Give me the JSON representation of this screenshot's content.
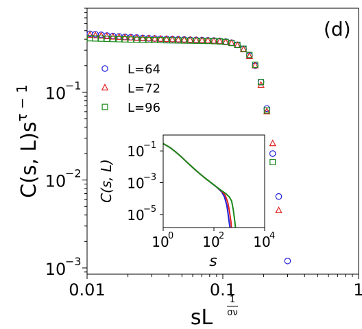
{
  "chart_data": [
    {
      "type": "scatter",
      "panel_label": "(d)",
      "x_scale": "log",
      "y_scale": "log",
      "xlim": [
        0.01,
        1
      ],
      "ylim": [
        0.00085,
        0.9
      ],
      "x_ticks": [
        0.01,
        0.1,
        1
      ],
      "x_tick_labels": [
        "0.01",
        "0.1",
        "1"
      ],
      "y_ticks": [
        0.001,
        0.01,
        0.1
      ],
      "y_tick_labels": [
        "10",
        "10",
        "10"
      ],
      "y_tick_exponents": [
        "−3",
        "−2",
        "−1"
      ],
      "xlabel_base": "sL",
      "xlabel_exp_num": "1",
      "xlabel_exp_den": "σν",
      "ylabel_main": "C(s, L)s",
      "ylabel_exp": "τ − 1",
      "legend_position": "center-left",
      "series": [
        {
          "name": "L=64",
          "color": "#1f1fd8",
          "marker": "circle",
          "x": [
            0.0105,
            0.0115,
            0.0127,
            0.014,
            0.0155,
            0.0172,
            0.019,
            0.021,
            0.0232,
            0.0257,
            0.0285,
            0.0315,
            0.0348,
            0.0385,
            0.0425,
            0.047,
            0.052,
            0.0575,
            0.0636,
            0.0703,
            0.0777,
            0.0859,
            0.095,
            0.105,
            0.116,
            0.128,
            0.142,
            0.157,
            0.173,
            0.191,
            0.211,
            0.233,
            0.258,
            0.3
          ],
          "y": [
            0.46,
            0.455,
            0.448,
            0.44,
            0.435,
            0.43,
            0.425,
            0.421,
            0.417,
            0.413,
            0.41,
            0.407,
            0.404,
            0.402,
            0.4,
            0.398,
            0.396,
            0.394,
            0.392,
            0.39,
            0.388,
            0.386,
            0.382,
            0.375,
            0.365,
            0.345,
            0.31,
            0.26,
            0.2,
            0.13,
            0.065,
            0.02,
            0.0065,
            0.0012
          ]
        },
        {
          "name": "L=72",
          "color": "#e02020",
          "marker": "triangle",
          "x": [
            0.0105,
            0.0115,
            0.0127,
            0.014,
            0.0155,
            0.0172,
            0.019,
            0.021,
            0.0232,
            0.0257,
            0.0285,
            0.0315,
            0.0348,
            0.0385,
            0.0425,
            0.047,
            0.052,
            0.0575,
            0.0636,
            0.0703,
            0.0777,
            0.0859,
            0.095,
            0.105,
            0.116,
            0.128,
            0.142,
            0.157,
            0.173,
            0.191,
            0.211,
            0.233,
            0.258
          ],
          "y": [
            0.445,
            0.44,
            0.435,
            0.43,
            0.425,
            0.421,
            0.417,
            0.414,
            0.411,
            0.408,
            0.406,
            0.403,
            0.401,
            0.399,
            0.397,
            0.395,
            0.393,
            0.391,
            0.389,
            0.387,
            0.384,
            0.381,
            0.377,
            0.37,
            0.36,
            0.34,
            0.305,
            0.255,
            0.2,
            0.12,
            0.06,
            0.026,
            0.0045
          ]
        },
        {
          "name": "L=96",
          "color": "#1a8a1a",
          "marker": "square",
          "x": [
            0.0105,
            0.0115,
            0.0127,
            0.014,
            0.0155,
            0.0172,
            0.019,
            0.021,
            0.0232,
            0.0257,
            0.0285,
            0.0315,
            0.0348,
            0.0385,
            0.0425,
            0.047,
            0.052,
            0.0575,
            0.0636,
            0.0703,
            0.0777,
            0.0859,
            0.095,
            0.105,
            0.116,
            0.128,
            0.142,
            0.157,
            0.173,
            0.191,
            0.211,
            0.233
          ],
          "y": [
            0.41,
            0.408,
            0.406,
            0.404,
            0.402,
            0.4,
            0.398,
            0.396,
            0.394,
            0.393,
            0.392,
            0.391,
            0.39,
            0.389,
            0.388,
            0.387,
            0.386,
            0.385,
            0.384,
            0.383,
            0.382,
            0.38,
            0.377,
            0.372,
            0.362,
            0.345,
            0.312,
            0.265,
            0.205,
            0.13,
            0.062,
            0.016
          ]
        }
      ]
    },
    {
      "type": "line",
      "role": "inset",
      "x_scale": "log",
      "y_scale": "log",
      "xlim": [
        1,
        10000
      ],
      "ylim": [
        1.5e-06,
        1
      ],
      "x_ticks": [
        1,
        100,
        10000
      ],
      "x_tick_labels": [
        "10",
        "10",
        "10"
      ],
      "x_tick_exponents": [
        "0",
        "2",
        "4"
      ],
      "y_ticks": [
        1e-05,
        0.001,
        0.1
      ],
      "y_tick_labels": [
        "10",
        "10",
        "10"
      ],
      "y_tick_exponents": [
        "−5",
        "−3",
        "−1"
      ],
      "xlabel": "s",
      "ylabel": "C(s, L)",
      "series": [
        {
          "color": "#1f1fd8",
          "x": [
            1,
            1.5,
            2,
            3,
            5,
            8,
            12,
            20,
            30,
            50,
            80,
            120,
            200,
            260,
            320,
            360,
            390,
            410,
            430
          ],
          "y": [
            0.29,
            0.2,
            0.15,
            0.09,
            0.045,
            0.022,
            0.012,
            0.0057,
            0.0033,
            0.0017,
            0.00095,
            0.00058,
            0.00027,
            0.00013,
            4e-05,
            1.2e-05,
            4.5e-06,
            2.5e-06,
            1.5e-06
          ]
        },
        {
          "color": "#e02020",
          "x": [
            1,
            1.5,
            2,
            3,
            5,
            8,
            12,
            20,
            30,
            50,
            80,
            120,
            200,
            280,
            350,
            400,
            440,
            470,
            490
          ],
          "y": [
            0.29,
            0.2,
            0.15,
            0.09,
            0.045,
            0.022,
            0.012,
            0.0057,
            0.0033,
            0.0017,
            0.00095,
            0.00058,
            0.0003,
            0.00016,
            6e-05,
            2e-05,
            7e-06,
            3.5e-06,
            1.5e-06
          ]
        },
        {
          "color": "#1a8a1a",
          "x": [
            1,
            1.5,
            2,
            3,
            5,
            8,
            12,
            20,
            30,
            50,
            80,
            120,
            200,
            300,
            400,
            500,
            580,
            640,
            680,
            710
          ],
          "y": [
            0.29,
            0.2,
            0.15,
            0.09,
            0.045,
            0.022,
            0.012,
            0.0057,
            0.0033,
            0.0017,
            0.00095,
            0.00058,
            0.00032,
            0.0002,
            0.00013,
            7e-05,
            2e-05,
            6e-06,
            2.8e-06,
            1.5e-06
          ]
        }
      ]
    }
  ]
}
